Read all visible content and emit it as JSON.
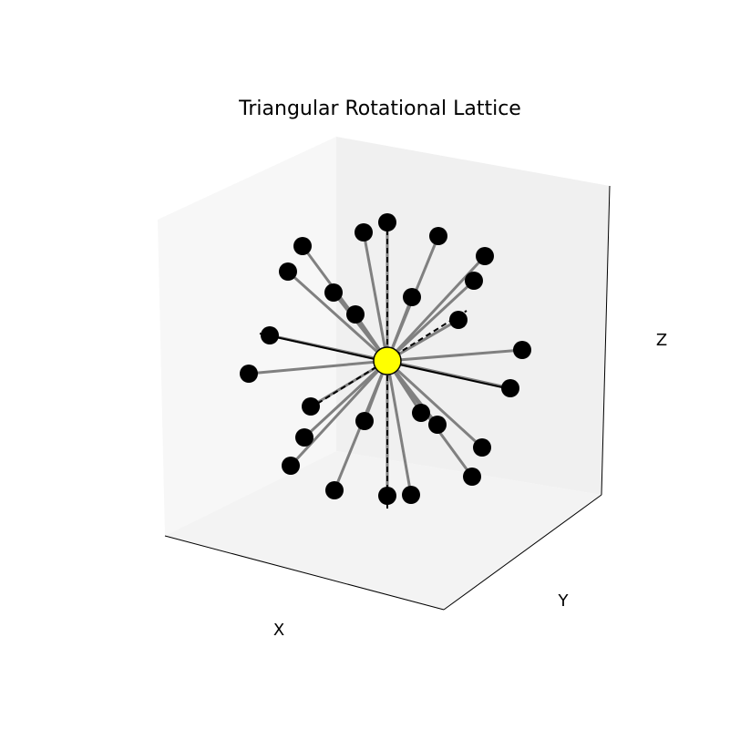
{
  "chart_data": {
    "type": "scatter",
    "title": "Triangular Rotational Lattice",
    "xlabel": "X",
    "ylabel": "Y",
    "zlabel": "Z",
    "grid": false,
    "center": {
      "label": "",
      "color": "#ffff00"
    },
    "node_color": "#000000",
    "bond_color": "#808080",
    "axis_line_color": "#000000",
    "pane_colors": {
      "left": "#f7f7f7",
      "back": "#f0f0f0",
      "floor": "#f3f3f3"
    }
  }
}
